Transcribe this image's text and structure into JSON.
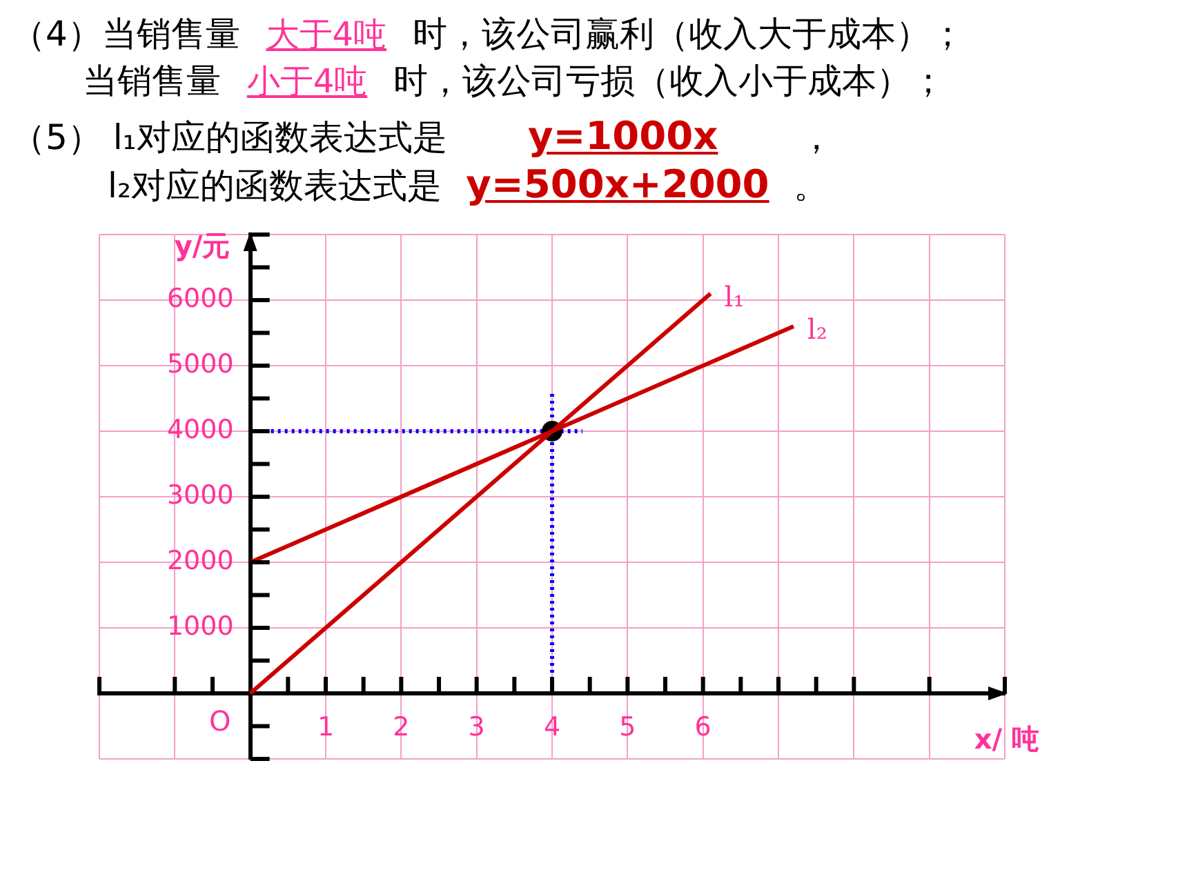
{
  "chart_data": {
    "type": "line",
    "xlabel": "x/ 吨",
    "ylabel": "y/元",
    "annotations": [
      "（4）当销售量",
      "大于4吨",
      "时，该公司赢利（收入大于成本）；",
      "当销售量",
      "小于4吨",
      "时，该公司亏损（收入小于成本）；",
      "（5） l₁对应的函数表达式是",
      "y=1000x",
      "，",
      "l₂对应的函数表达式是",
      "y=500x+2000",
      "。",
      "O"
    ],
    "xlim": [
      -2,
      10
    ],
    "ylim": [
      -1000,
      7000
    ],
    "xticks": [
      {
        "value": -2,
        "label": null
      },
      {
        "value": -1,
        "label": null
      },
      {
        "value": -0.5,
        "label": null
      },
      {
        "value": 0.5,
        "label": null
      },
      1,
      {
        "value": 1.5,
        "label": null
      },
      2,
      {
        "value": 2.5,
        "label": null
      },
      3,
      {
        "value": 3.5,
        "label": null
      },
      4,
      {
        "value": 4.5,
        "label": null
      },
      5,
      {
        "value": 5.5,
        "label": null
      },
      6,
      {
        "value": 6.5,
        "label": null
      },
      {
        "value": 7,
        "label": null
      },
      {
        "value": 7.5,
        "label": null
      },
      {
        "value": 8,
        "label": null
      },
      {
        "value": 9,
        "label": null
      },
      {
        "value": 10,
        "label": null
      }
    ],
    "yticks": [
      {
        "value": -1000,
        "label": null
      },
      {
        "value": -500,
        "label": null
      },
      {
        "value": 500,
        "label": null
      },
      1000,
      {
        "value": 1500,
        "label": null
      },
      2000,
      {
        "value": 2500,
        "label": null
      },
      3000,
      {
        "value": 3500,
        "label": null
      },
      4000,
      {
        "value": 4500,
        "label": null
      },
      5000,
      {
        "value": 5500,
        "label": null
      },
      6000,
      {
        "value": 6500,
        "label": null
      },
      {
        "value": 7000,
        "label": null
      }
    ],
    "grid": true,
    "legend": false,
    "ref_lines": [
      {
        "axis": "x",
        "value": 4,
        "color": "#0000ff",
        "line_style": "dotted"
      },
      {
        "axis": "y",
        "value": 4000,
        "color": "#0000ff",
        "line_style": "dotted"
      }
    ],
    "series": [
      {
        "name": "l₁",
        "type": "line",
        "color": "#cc0000",
        "x": [
          0,
          6.1
        ],
        "values": [
          0,
          6100
        ]
      },
      {
        "name": "l₂",
        "type": "line",
        "color": "#cc0000",
        "x": [
          0,
          7.2
        ],
        "values": [
          2000,
          5600
        ]
      },
      {
        "type": "scatter",
        "color": "#000000",
        "marker": "circle",
        "x": [
          4
        ],
        "values": [
          4000
        ]
      }
    ]
  }
}
